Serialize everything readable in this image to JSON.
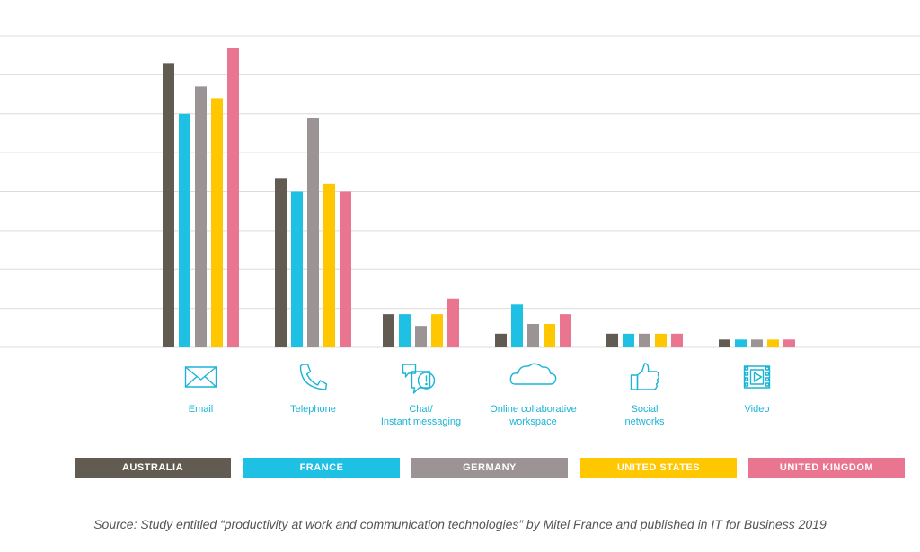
{
  "chart_data": {
    "type": "bar",
    "title": "",
    "xlabel": "",
    "ylabel": "",
    "ylim": [
      0,
      80
    ],
    "grid": true,
    "categories": [
      {
        "icon": "envelope-icon",
        "lines": [
          "Email"
        ]
      },
      {
        "icon": "telephone-icon",
        "lines": [
          "Telephone"
        ]
      },
      {
        "icon": "chat-bubbles-icon",
        "lines": [
          "Chat/",
          "Instant messaging"
        ]
      },
      {
        "icon": "cloud-icon",
        "lines": [
          "Online collaborative",
          "workspace"
        ]
      },
      {
        "icon": "thumbs-up-icon",
        "lines": [
          "Social",
          "networks"
        ]
      },
      {
        "icon": "video-icon",
        "lines": [
          "Video"
        ]
      }
    ],
    "series": [
      {
        "name": "AUSTRALIA",
        "color": "#625b52",
        "values": [
          73,
          43.5,
          8.5,
          3.5,
          3.5,
          2
        ]
      },
      {
        "name": "FRANCE",
        "color": "#1ec0e3",
        "values": [
          60,
          40,
          8.5,
          11,
          3.5,
          2
        ]
      },
      {
        "name": "GERMANY",
        "color": "#9c9395",
        "values": [
          67,
          59,
          5.5,
          6,
          3.5,
          2
        ]
      },
      {
        "name": "UNITED STATES",
        "color": "#ffc700",
        "values": [
          64,
          42,
          8.5,
          6,
          3.5,
          2
        ]
      },
      {
        "name": "UNITED KINGDOM",
        "color": "#e97590",
        "values": [
          77,
          40,
          12.5,
          8.5,
          3.5,
          2
        ]
      }
    ]
  },
  "source_text": "Source: Study entitled “productivity at work and communication technologies” by Mitel France and published in IT for Business 2019"
}
